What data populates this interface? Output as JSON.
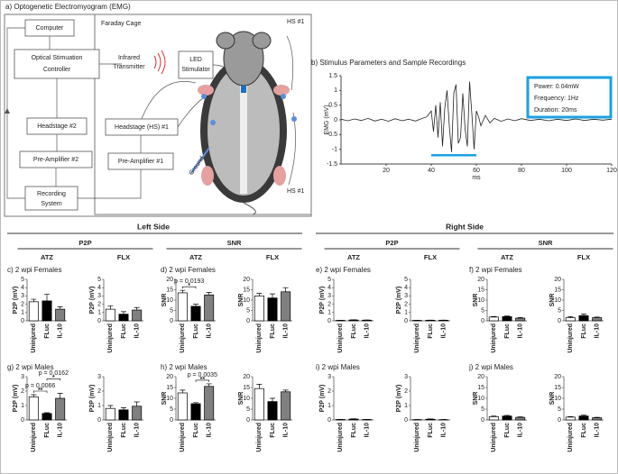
{
  "diagram": {
    "title": "a) Optogenetic Electromyogram (EMG)",
    "cage": "Faraday Cage",
    "computer": "Computer",
    "optical": [
      "Optical Stimuation",
      "Controller"
    ],
    "headstage2": "Headstage #2",
    "preamp2": "Pre-Amplifier #2",
    "recording": [
      "Recording",
      "System"
    ],
    "infrared": [
      "Infrared",
      "Transmitter"
    ],
    "led": [
      "LED",
      "Stimulator"
    ],
    "headstage1": "Headstage (HS) #1",
    "preamp1": "Pre-Amplifier #1",
    "ground": "Ground",
    "hs_top": "HS #1",
    "hs_bottom": "HS #1"
  },
  "headers": {
    "left": "Left Side",
    "right": "Right Side",
    "groups": [
      {
        "label": "P2P",
        "subs": [
          "ATZ",
          "FLX"
        ]
      },
      {
        "label": "SNR",
        "subs": [
          "ATZ",
          "FLX"
        ]
      },
      {
        "label": "P2P",
        "subs": [
          "ATZ",
          "FLX"
        ]
      },
      {
        "label": "SNR",
        "subs": [
          "ATZ",
          "FLX"
        ]
      }
    ]
  },
  "panels": [
    "c) 2 wpi Females",
    "d) 2 wpi Females",
    "e) 2 wpi Females",
    "f) 2 wpi Females",
    "g) 2 wpi Males",
    "h) 2 wpi Males",
    "i) 2 wpi Males",
    "j) 2 wpi Males"
  ],
  "chart_data": [
    {
      "type": "line",
      "title": "b) Stimulus Parameters and Sample Recordings",
      "xlabel": "ms",
      "ylabel": "EMG (mV)",
      "color": "#222222",
      "x": [
        0,
        3,
        6,
        9,
        12,
        15,
        18,
        21,
        24,
        27,
        30,
        33,
        36,
        38,
        40,
        41,
        42,
        43,
        44,
        45,
        46,
        47,
        48,
        49,
        50,
        51,
        52,
        53,
        54,
        55,
        56,
        57,
        58,
        59,
        60,
        61,
        62,
        64,
        66,
        68,
        71,
        74,
        77,
        80,
        84,
        88,
        92,
        96,
        100,
        104,
        108,
        112,
        116,
        120
      ],
      "values": [
        0.02,
        -0.03,
        0.03,
        -0.02,
        0.05,
        -0.04,
        0.02,
        -0.05,
        0.04,
        -0.03,
        0.02,
        -0.04,
        0.05,
        0.1,
        0.3,
        -0.4,
        0.5,
        -0.6,
        0.6,
        -0.9,
        0.4,
        1.0,
        -0.2,
        -1.1,
        0.9,
        1.2,
        -0.8,
        -0.6,
        0.9,
        -0.3,
        -0.9,
        1.3,
        0.2,
        -1.0,
        0.3,
        0.1,
        -0.2,
        0.15,
        -0.1,
        0.05,
        -0.05,
        0.03,
        -0.03,
        0.04,
        -0.02,
        0.02,
        -0.03,
        0.02,
        -0.02,
        0.03,
        -0.02,
        0.02,
        -0.01,
        0.02
      ],
      "xlim": [
        0,
        120
      ],
      "xticks": [
        20,
        40,
        60,
        80,
        100,
        120
      ],
      "ylim": [
        -1.5,
        1.5
      ],
      "yticks": [
        -1.5,
        -1,
        -0.5,
        0,
        0.5,
        1,
        1.5
      ],
      "stimulus_x": [
        40,
        60
      ],
      "stimulus_y": -1.2,
      "stimulus_color": "#1ba1e2",
      "annotation": [
        "Power: 0.04mW",
        "Frequency: 1Hz",
        "Duration: 20ms"
      ]
    },
    {
      "type": "bar",
      "ylabel": "P2P (mV)",
      "categories": [
        "Uninjured",
        "FLuc",
        "IL-10"
      ],
      "colors": [
        "#ffffff",
        "#000000",
        "#808080"
      ],
      "values": [
        2.3,
        2.4,
        1.4
      ],
      "errors": [
        0.3,
        0.8,
        0.3
      ],
      "ylim": [
        0,
        5
      ],
      "yticks": [
        0,
        1,
        2,
        3,
        4,
        5
      ],
      "annotations": []
    },
    {
      "type": "bar",
      "ylabel": "P2P (mV)",
      "categories": [
        "Uninjured",
        "FLuc",
        "IL-10"
      ],
      "colors": [
        "#ffffff",
        "#000000",
        "#808080"
      ],
      "values": [
        1.4,
        0.8,
        1.3
      ],
      "errors": [
        0.4,
        0.3,
        0.3
      ],
      "ylim": [
        0,
        5
      ],
      "yticks": [
        0,
        1,
        2,
        3,
        4,
        5
      ],
      "annotations": []
    },
    {
      "type": "bar",
      "ylabel": "SNR",
      "categories": [
        "Uninjured",
        "FLuc",
        "IL-10"
      ],
      "colors": [
        "#ffffff",
        "#000000",
        "#808080"
      ],
      "values": [
        13.5,
        7,
        12.5
      ],
      "errors": [
        1.2,
        1,
        1.2
      ],
      "ylim": [
        0,
        20
      ],
      "yticks": [
        0,
        5,
        10,
        15,
        20
      ],
      "annotations": [
        {
          "text": "p = 0.0193",
          "stars": "*",
          "between": [
            "Uninjured",
            "FLuc"
          ]
        }
      ]
    },
    {
      "type": "bar",
      "ylabel": "SNR",
      "categories": [
        "Uninjured",
        "FLuc",
        "IL-10"
      ],
      "colors": [
        "#ffffff",
        "#000000",
        "#808080"
      ],
      "values": [
        12,
        11,
        14
      ],
      "errors": [
        1.2,
        2,
        2
      ],
      "ylim": [
        0,
        20
      ],
      "yticks": [
        0,
        5,
        10,
        15,
        20
      ],
      "annotations": []
    },
    {
      "type": "bar",
      "ylabel": "P2P (mV)",
      "categories": [
        "Uninjured",
        "FLuc",
        "IL-10"
      ],
      "colors": [
        "#ffffff",
        "#000000",
        "#808080"
      ],
      "values": [
        0.05,
        0.1,
        0.08
      ],
      "errors": [
        0.02,
        0.02,
        0.02
      ],
      "ylim": [
        0,
        5
      ],
      "yticks": [
        0,
        1,
        2,
        3,
        4,
        5
      ],
      "annotations": []
    },
    {
      "type": "bar",
      "ylabel": "P2P (mV)",
      "categories": [
        "Uninjured",
        "FLuc",
        "IL-10"
      ],
      "colors": [
        "#ffffff",
        "#000000",
        "#808080"
      ],
      "values": [
        0.05,
        0.07,
        0.07
      ],
      "errors": [
        0.02,
        0.02,
        0.02
      ],
      "ylim": [
        0,
        5
      ],
      "yticks": [
        0,
        1,
        2,
        3,
        4,
        5
      ],
      "annotations": []
    },
    {
      "type": "bar",
      "ylabel": "SNR",
      "categories": [
        "Uninjured",
        "FLuc",
        "IL-10"
      ],
      "colors": [
        "#ffffff",
        "#000000",
        "#808080"
      ],
      "values": [
        1.8,
        2,
        1.3
      ],
      "errors": [
        0.3,
        0.3,
        0.3
      ],
      "ylim": [
        0,
        20
      ],
      "yticks": [
        0,
        5,
        10,
        15,
        20
      ],
      "annotations": []
    },
    {
      "type": "bar",
      "ylabel": "SNR",
      "categories": [
        "Uninjured",
        "FLuc",
        "IL-10"
      ],
      "colors": [
        "#ffffff",
        "#000000",
        "#808080"
      ],
      "values": [
        1.5,
        2.5,
        1.5
      ],
      "errors": [
        0.5,
        0.8,
        0.3
      ],
      "ylim": [
        0,
        20
      ],
      "yticks": [
        0,
        5,
        10,
        15,
        20
      ],
      "annotations": []
    },
    {
      "type": "bar",
      "ylabel": "P2P (mV)",
      "categories": [
        "Uninjured",
        "FLuc",
        "IL-10"
      ],
      "colors": [
        "#ffffff",
        "#000000",
        "#808080"
      ],
      "values": [
        1.6,
        0.45,
        1.5
      ],
      "errors": [
        0.15,
        0.05,
        0.35
      ],
      "ylim": [
        0,
        3
      ],
      "yticks": [
        0,
        1,
        2,
        3
      ],
      "annotations": [
        {
          "text": "p = 0.0066",
          "stars": "**",
          "between": [
            "Uninjured",
            "FLuc"
          ]
        },
        {
          "text": "p = 0.0162",
          "stars": "*",
          "between": [
            "FLuc",
            "IL-10"
          ]
        }
      ]
    },
    {
      "type": "bar",
      "ylabel": "P2P (mV)",
      "categories": [
        "Uninjured",
        "FLuc",
        "IL-10"
      ],
      "colors": [
        "#ffffff",
        "#000000",
        "#808080"
      ],
      "values": [
        0.8,
        0.7,
        0.95
      ],
      "errors": [
        0.2,
        0.15,
        0.3
      ],
      "ylim": [
        0,
        3
      ],
      "yticks": [
        0,
        1,
        2,
        3
      ],
      "annotations": []
    },
    {
      "type": "bar",
      "ylabel": "SNR",
      "categories": [
        "Uninjured",
        "FLuc",
        "IL-10"
      ],
      "colors": [
        "#ffffff",
        "#000000",
        "#808080"
      ],
      "values": [
        12.5,
        7.5,
        15.5
      ],
      "errors": [
        1.3,
        0.5,
        1.2
      ],
      "ylim": [
        0,
        20
      ],
      "yticks": [
        0,
        5,
        10,
        15,
        20
      ],
      "annotations": [
        {
          "text": "p = 0.0035",
          "stars": "**",
          "between": [
            "FLuc",
            "IL-10"
          ]
        }
      ]
    },
    {
      "type": "bar",
      "ylabel": "SNR",
      "categories": [
        "Uninjured",
        "FLuc",
        "IL-10"
      ],
      "colors": [
        "#ffffff",
        "#000000",
        "#808080"
      ],
      "values": [
        14.5,
        8.5,
        13
      ],
      "errors": [
        2,
        1.5,
        0.8
      ],
      "ylim": [
        0,
        20
      ],
      "yticks": [
        0,
        5,
        10,
        15,
        20
      ],
      "annotations": []
    },
    {
      "type": "bar",
      "ylabel": "P2P (mV)",
      "categories": [
        "Uninjured",
        "FLuc",
        "IL-10"
      ],
      "colors": [
        "#ffffff",
        "#000000",
        "#808080"
      ],
      "values": [
        0.03,
        0.06,
        0.03
      ],
      "errors": [
        0.01,
        0.02,
        0.01
      ],
      "ylim": [
        0,
        3
      ],
      "yticks": [
        0,
        1,
        2,
        3
      ],
      "annotations": []
    },
    {
      "type": "bar",
      "ylabel": "P2P (mV)",
      "categories": [
        "Uninjured",
        "FLuc",
        "IL-10"
      ],
      "colors": [
        "#ffffff",
        "#000000",
        "#808080"
      ],
      "values": [
        0.02,
        0.05,
        0.02
      ],
      "errors": [
        0.01,
        0.02,
        0.01
      ],
      "ylim": [
        0,
        3
      ],
      "yticks": [
        0,
        1,
        2,
        3
      ],
      "annotations": []
    },
    {
      "type": "bar",
      "ylabel": "SNR",
      "categories": [
        "Uninjured",
        "FLuc",
        "IL-10"
      ],
      "colors": [
        "#ffffff",
        "#000000",
        "#808080"
      ],
      "values": [
        1.5,
        1.8,
        1.2
      ],
      "errors": [
        0.3,
        0.3,
        0.2
      ],
      "ylim": [
        0,
        20
      ],
      "yticks": [
        0,
        5,
        10,
        15,
        20
      ],
      "annotations": []
    },
    {
      "type": "bar",
      "ylabel": "SNR",
      "categories": [
        "Uninjured",
        "FLuc",
        "IL-10"
      ],
      "colors": [
        "#ffffff",
        "#000000",
        "#808080"
      ],
      "values": [
        1.3,
        1.8,
        1.0
      ],
      "errors": [
        0.2,
        0.4,
        0.2
      ],
      "ylim": [
        0,
        20
      ],
      "yticks": [
        0,
        5,
        10,
        15,
        20
      ],
      "annotations": []
    }
  ]
}
